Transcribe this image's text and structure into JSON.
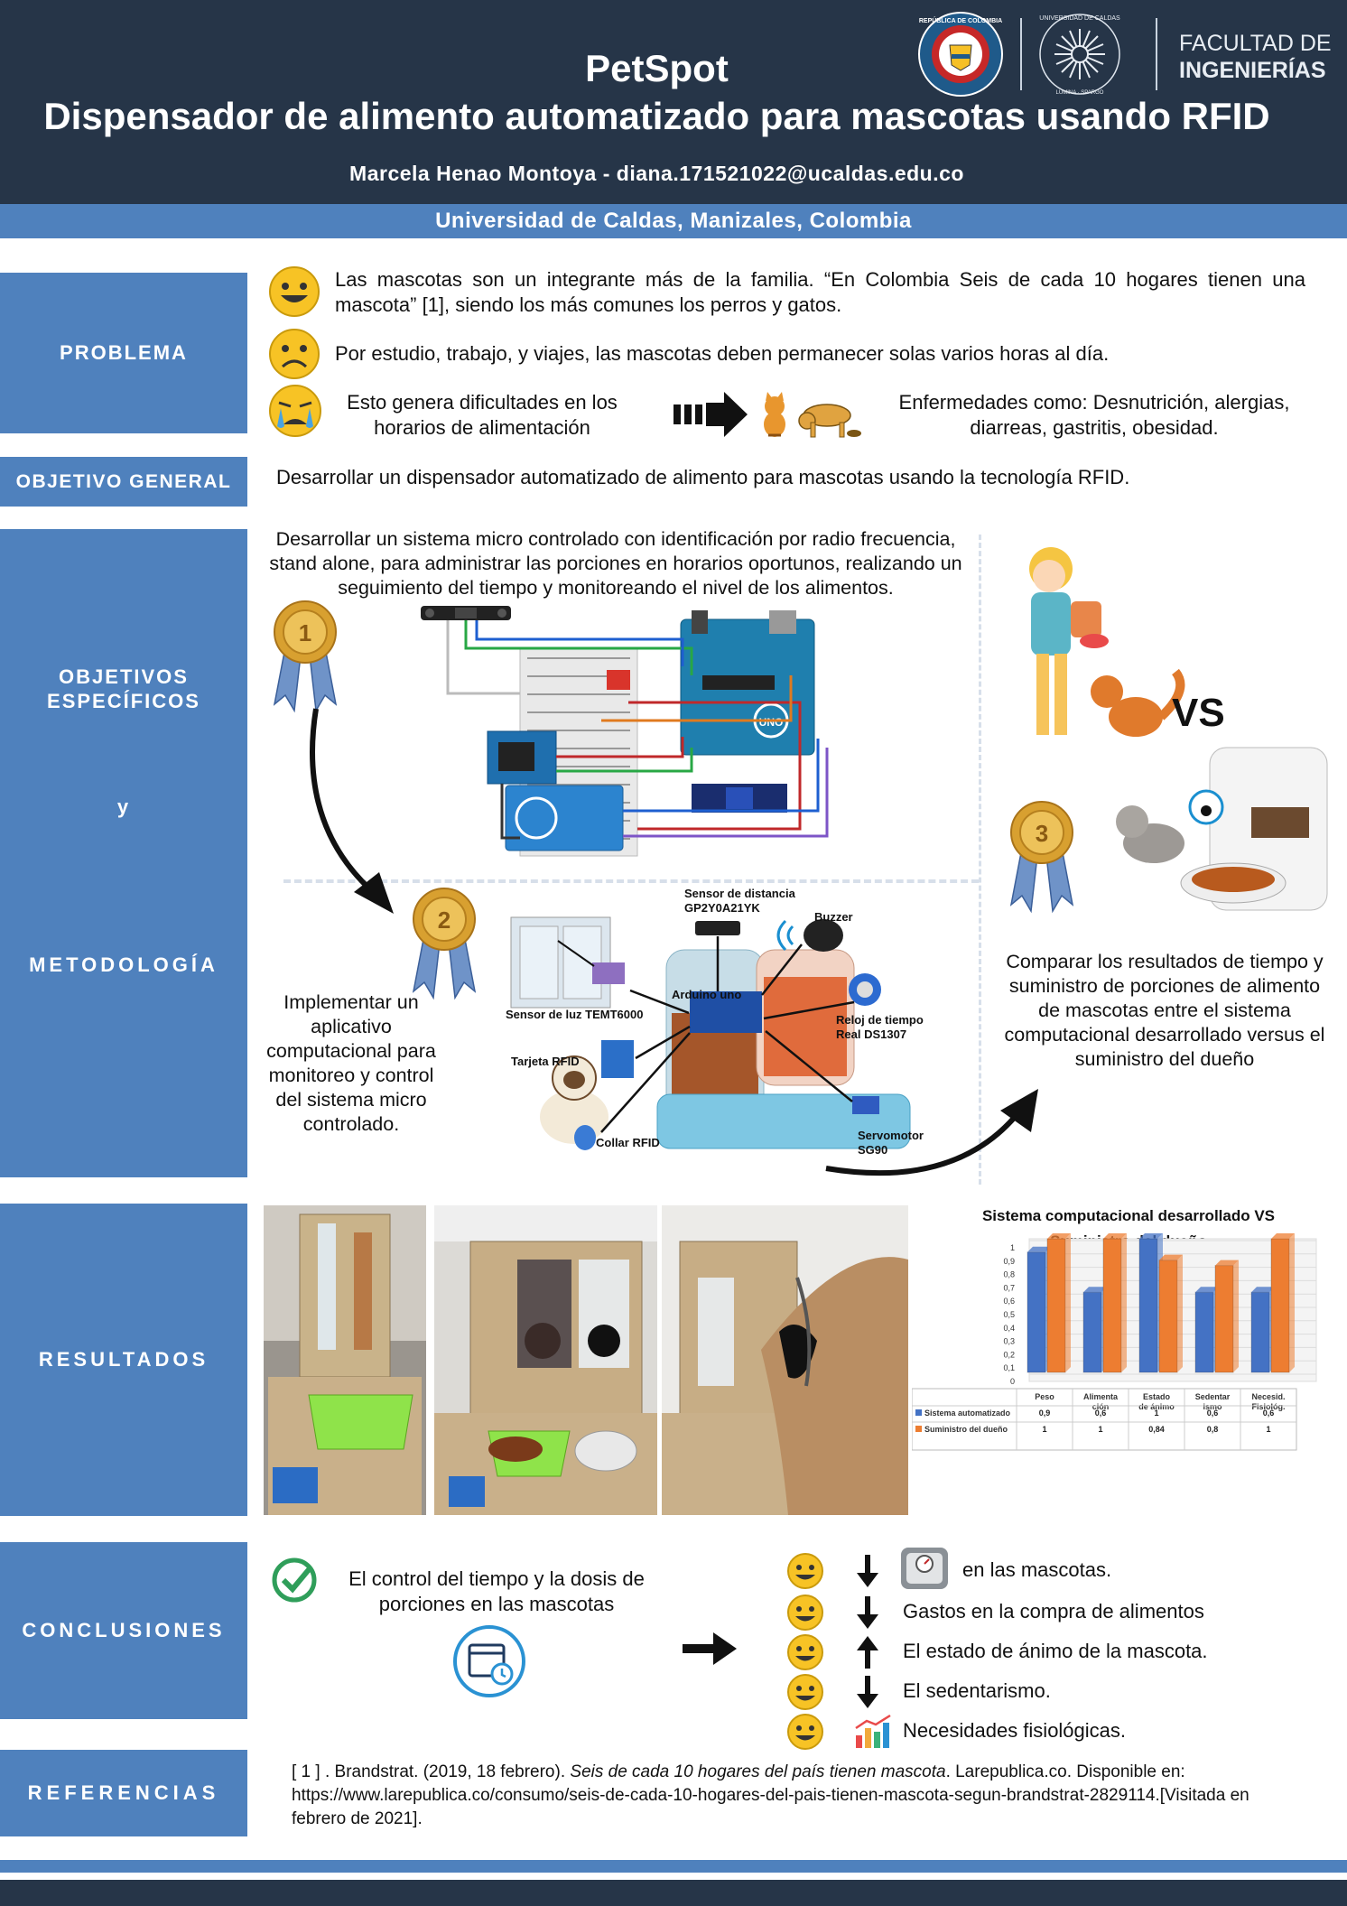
{
  "header": {
    "title": "PetSpot",
    "subtitle": "Dispensador de alimento automatizado para mascotas usando RFID",
    "authors": "Marcela Henao Montoya -  diana.171521022@ucaldas.edu.co",
    "university": "Universidad de Caldas, Manizales, Colombia",
    "logos": {
      "republica_ring": "REPÚBLICA DE COLOMBIA",
      "ucaldas_ring": "UNIVERSIDAD DE CALDAS",
      "ucaldas_bottom": "LUMINA · SPARGO",
      "faculty_line1": "FACULTAD DE",
      "faculty_line2": "INGENIERÍAS"
    }
  },
  "problema": {
    "label": "PROBLEMA",
    "line1": "Las mascotas son un integrante más de la familia. “En Colombia Seis de cada 10 hogares tienen una mascota” [1], siendo los más comunes los perros y gatos.",
    "line2": "Por estudio, trabajo, y viajes, las mascotas deben permanecer solas varios horas al día.",
    "line3": "Esto genera dificultades en los horarios de alimentación",
    "line4": "Enfermedades como: Desnutrición, alergias, diarreas, gastritis, obesidad."
  },
  "objetivo_general": {
    "label": "OBJETIVO GENERAL",
    "text": "Desarrollar un dispensador automatizado de alimento para mascotas usando la tecnología RFID."
  },
  "objetivos": {
    "label_line1": "OBJETIVOS",
    "label_line2": "ESPECÍFICOS",
    "label_y": "y",
    "label_metodologia": "METODOLOGÍA",
    "obj1": "Desarrollar un sistema micro controlado con identificación por radio frecuencia, stand alone, para administrar las porciones en horarios oportunos, realizando un seguimiento del tiempo y monitoreando el nivel de los alimentos.",
    "obj2": "Implementar un aplicativo computacional para monitoreo y control del sistema micro controlado.",
    "obj3": "Comparar los resultados de tiempo y suministro de porciones de alimento de mascotas entre el sistema computacional desarrollado versus el suministro del dueño",
    "medal1": "1",
    "medal2": "2",
    "medal3": "3",
    "vs": "VS",
    "uno_label": "UNO",
    "diagram_labels": {
      "distancia": "Sensor de distancia GP2Y0A21YK",
      "buzzer": "Buzzer",
      "luz": "Sensor de luz TEMT6000",
      "arduino": "Arduino uno",
      "reloj": "Reloj de tiempo Real DS1307",
      "rfid": "Tarjeta RFID",
      "collar": "Collar RFID",
      "servo": "Servomotor SG90"
    }
  },
  "resultados": {
    "label": "RESULTADOS"
  },
  "chart_data": {
    "type": "bar",
    "title": "Sistema computacional desarrollado VS Suministro del dueño",
    "categories": [
      "Peso",
      "Alimentación",
      "Estado de ánimo",
      "Sedentarismo",
      "Necesid. Fisiológ."
    ],
    "category_labels": [
      [
        "Peso"
      ],
      [
        "Alimenta",
        "ción"
      ],
      [
        "Estado",
        "de ánimo"
      ],
      [
        "Sedentar",
        "ismo"
      ],
      [
        "Necesid.",
        "Fisiológ."
      ]
    ],
    "series": [
      {
        "name": "Sistema automatizado",
        "values": [
          0.9,
          0.6,
          1,
          0.6,
          0.6
        ],
        "value_labels": [
          "0,9",
          "0,6",
          "1",
          "0,6",
          "0,6"
        ],
        "color": "#4472c4"
      },
      {
        "name": "Suministro del dueño",
        "values": [
          1,
          1,
          0.84,
          0.8,
          1
        ],
        "value_labels": [
          "1",
          "1",
          "0,84",
          "0,8",
          "1"
        ],
        "color": "#ed7d31"
      }
    ],
    "ylim": [
      0,
      1
    ],
    "yticks": [
      "0",
      "0,1",
      "0,2",
      "0,3",
      "0,4",
      "0,5",
      "0,6",
      "0,7",
      "0,8",
      "0,9",
      "1"
    ],
    "legend": "bottom-table"
  },
  "conclusiones": {
    "label": "CONCLUSIONES",
    "main": "El control del tiempo y la dosis de porciones en las mascotas",
    "items": [
      {
        "arrow": "down",
        "text": "en las mascotas."
      },
      {
        "arrow": "down",
        "text": "Gastos en la compra de alimentos"
      },
      {
        "arrow": "up",
        "text": "El estado de ánimo de la mascota."
      },
      {
        "arrow": "down",
        "text": "El sedentarismo."
      },
      {
        "arrow": "chart",
        "text": "Necesidades fisiológicas."
      }
    ]
  },
  "referencias": {
    "label": "REFERENCIAS",
    "text_prefix": "[ 1 ] .  Brandstrat. (2019, 18 febrero). ",
    "text_italic": "Seis de cada 10 hogares del país tienen mascota",
    "text_suffix": ". Larepublica.co. Disponible en: https://www.larepublica.co/consumo/seis-de-cada-10-hogares-del-pais-tienen-mascota-segun-brandstrat-2829114.[Visitada en febrero de 2021]."
  }
}
